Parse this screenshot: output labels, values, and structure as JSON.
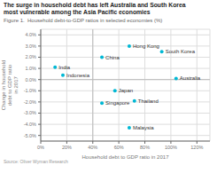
{
  "chart_data": {
    "type": "scatter",
    "title": "The surge in household debt has left Australia and South Korea\nmost vulnerable among the Asia Pacific economies",
    "subtitle": "Figure 1.  Household debt-to-GDP ratios in selected economies (%)",
    "xlabel": "Household debt to GDP ratio in 2017",
    "ylabel": "Change in household\ndebt to GDP ratio\nin 2017",
    "source": "Source: Oliver Wyman Research",
    "points": [
      {
        "name": "Hong Kong",
        "x": 68,
        "y": 3.0
      },
      {
        "name": "South Korea",
        "x": 93,
        "y": 2.5
      },
      {
        "name": "China",
        "x": 47,
        "y": 2.0
      },
      {
        "name": "India",
        "x": 11,
        "y": 1.1
      },
      {
        "name": "Indonesia",
        "x": 17,
        "y": 0.4
      },
      {
        "name": "Australia",
        "x": 104,
        "y": 0.1
      },
      {
        "name": "Japan",
        "x": 57,
        "y": -1.0
      },
      {
        "name": "Thailand",
        "x": 72,
        "y": -1.9
      },
      {
        "name": "Singapore",
        "x": 47,
        "y": -2.1
      },
      {
        "name": "Malaysia",
        "x": 68,
        "y": -4.3
      }
    ],
    "color": "#00b8d4",
    "xlim": [
      0,
      130
    ],
    "ylim": [
      -5.5,
      4.5
    ],
    "xticks": [
      {
        "value": 0,
        "label": "0%"
      },
      {
        "value": 20,
        "label": "20%"
      },
      {
        "value": 40,
        "label": "40%"
      },
      {
        "value": 60,
        "label": "60%"
      },
      {
        "value": 80,
        "label": "80%"
      },
      {
        "value": 100,
        "label": "100%"
      },
      {
        "value": 120,
        "label": "120%"
      }
    ],
    "yticks": [
      {
        "value": -5.0,
        "label": "-5.0%"
      },
      {
        "value": -4.0,
        "label": "-4.0%"
      },
      {
        "value": -3.0,
        "label": "-3.0%"
      },
      {
        "value": -2.0,
        "label": "-2.0%"
      },
      {
        "value": -1.0,
        "label": "-1.0%"
      },
      {
        "value": 0.0,
        "label": "0.0%"
      },
      {
        "value": 1.0,
        "label": "1.0%"
      },
      {
        "value": 2.0,
        "label": "2.0%"
      },
      {
        "value": 3.0,
        "label": "3.0%"
      },
      {
        "value": 4.0,
        "label": "4.0%"
      }
    ],
    "reference_lines": {
      "x": 40,
      "y": 0
    },
    "grid": true
  }
}
